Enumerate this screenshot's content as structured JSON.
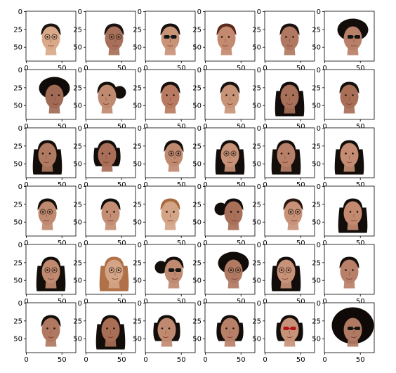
{
  "figure": {
    "type": "image-grid",
    "rows": 6,
    "cols": 6,
    "x_ticks": [
      "0",
      "50"
    ],
    "y_ticks": [
      "0",
      "25",
      "50"
    ],
    "grid_on": false,
    "axes_frame_color": "#000000",
    "background_color": "#ffffff"
  },
  "panels": [
    {
      "row": 0,
      "col": 0,
      "subject": "smiling man with glasses, short black hair, frontal",
      "hair": "short",
      "hair_color": "#1b1410",
      "skin": "#d9a98a",
      "glasses": "clear",
      "pose": "front"
    },
    {
      "row": 0,
      "col": 1,
      "subject": "man with glasses, three-quarter view",
      "hair": "short",
      "hair_color": "#1a1210",
      "skin": "#a8705a",
      "glasses": "clear",
      "pose": "right"
    },
    {
      "row": 0,
      "col": 2,
      "subject": "man with sunglasses, frontal",
      "hair": "short",
      "hair_color": "#150f0c",
      "skin": "#c99378",
      "glasses": "dark",
      "pose": "front"
    },
    {
      "row": 0,
      "col": 3,
      "subject": "woman with reddish-brown hair, turned left",
      "hair": "medium",
      "hair_color": "#5a2a1c",
      "skin": "#c48a70",
      "glasses": "none",
      "pose": "left"
    },
    {
      "row": 0,
      "col": 4,
      "subject": "man with short hair, frontal",
      "hair": "short",
      "hair_color": "#18110d",
      "skin": "#b07860",
      "glasses": "none",
      "pose": "front"
    },
    {
      "row": 0,
      "col": 5,
      "subject": "man with curly hair and sunglasses, profile",
      "hair": "curly",
      "hair_color": "#120d0a",
      "skin": "#b88068",
      "glasses": "dark",
      "pose": "right"
    },
    {
      "row": 1,
      "col": 0,
      "subject": "head with curly hair, turned away",
      "hair": "curly",
      "hair_color": "#100b09",
      "skin": "#a06a54",
      "glasses": "none",
      "pose": "right"
    },
    {
      "row": 1,
      "col": 1,
      "subject": "woman with hair in bun, turned left",
      "hair": "bun",
      "hair_color": "#140e0b",
      "skin": "#c08a70",
      "glasses": "none",
      "pose": "left"
    },
    {
      "row": 1,
      "col": 2,
      "subject": "smiling woman, frontal",
      "hair": "medium",
      "hair_color": "#160f0c",
      "skin": "#b87a60",
      "glasses": "none",
      "pose": "front"
    },
    {
      "row": 1,
      "col": 3,
      "subject": "small face woman, frontal",
      "hair": "short",
      "hair_color": "#1a120e",
      "skin": "#c89478",
      "glasses": "none",
      "pose": "front"
    },
    {
      "row": 1,
      "col": 4,
      "subject": "woman with dark hair, frontal",
      "hair": "long",
      "hair_color": "#120c0a",
      "skin": "#a87058",
      "glasses": "none",
      "pose": "front"
    },
    {
      "row": 1,
      "col": 5,
      "subject": "man with short hair, frontal",
      "hair": "short",
      "hair_color": "#15100c",
      "skin": "#a86e56",
      "glasses": "none",
      "pose": "front"
    },
    {
      "row": 2,
      "col": 0,
      "subject": "woman in profile facing left",
      "hair": "long",
      "hair_color": "#130d0a",
      "skin": "#b07a62",
      "glasses": "none",
      "pose": "left"
    },
    {
      "row": 2,
      "col": 1,
      "subject": "woman with bob hair, turned left",
      "hair": "bob",
      "hair_color": "#120c0a",
      "skin": "#a86e58",
      "glasses": "none",
      "pose": "left"
    },
    {
      "row": 2,
      "col": 2,
      "subject": "man with glasses, three-quarter",
      "hair": "short",
      "hair_color": "#140e0b",
      "skin": "#c08a70",
      "glasses": "clear",
      "pose": "right"
    },
    {
      "row": 2,
      "col": 3,
      "subject": "woman with round glasses, frontal",
      "hair": "long",
      "hair_color": "#120c0a",
      "skin": "#c89278",
      "glasses": "clear",
      "pose": "front"
    },
    {
      "row": 2,
      "col": 4,
      "subject": "woman in profile facing left",
      "hair": "long",
      "hair_color": "#140e0b",
      "skin": "#b88068",
      "glasses": "none",
      "pose": "left"
    },
    {
      "row": 2,
      "col": 5,
      "subject": "woman with long hair, frontal",
      "hair": "long",
      "hair_color": "#130d0a",
      "skin": "#c48c72",
      "glasses": "none",
      "pose": "front"
    },
    {
      "row": 3,
      "col": 0,
      "subject": "man with glasses, profile facing left",
      "hair": "medium",
      "hair_color": "#140e0b",
      "skin": "#c08a70",
      "glasses": "clear",
      "pose": "left"
    },
    {
      "row": 3,
      "col": 1,
      "subject": "young man, frontal",
      "hair": "medium",
      "hair_color": "#130d0a",
      "skin": "#c48e74",
      "glasses": "none",
      "pose": "front"
    },
    {
      "row": 3,
      "col": 2,
      "subject": "woman with light brown hair, frontal",
      "hair": "medium",
      "hair_color": "#a8683e",
      "skin": "#d4a486",
      "glasses": "none",
      "pose": "front"
    },
    {
      "row": 3,
      "col": 3,
      "subject": "woman with ponytail, profile facing right",
      "hair": "bun",
      "hair_color": "#120c0a",
      "skin": "#a87058",
      "glasses": "none",
      "pose": "right"
    },
    {
      "row": 3,
      "col": 4,
      "subject": "man with glasses, three-quarter",
      "hair": "medium",
      "hair_color": "#2a1610",
      "skin": "#c89278",
      "glasses": "clear",
      "pose": "right"
    },
    {
      "row": 3,
      "col": 5,
      "subject": "woman with long hair, turned right",
      "hair": "long",
      "hair_color": "#120c0a",
      "skin": "#c48a70",
      "glasses": "none",
      "pose": "right"
    },
    {
      "row": 4,
      "col": 0,
      "subject": "woman with glasses and long hair, frontal",
      "hair": "long",
      "hair_color": "#130d0a",
      "skin": "#c08a70",
      "glasses": "clear",
      "pose": "front"
    },
    {
      "row": 4,
      "col": 1,
      "subject": "woman with light brown hair and glasses",
      "hair": "long",
      "hair_color": "#b07048",
      "skin": "#d4a486",
      "glasses": "clear",
      "pose": "right"
    },
    {
      "row": 4,
      "col": 2,
      "subject": "woman with sunglasses, profile right",
      "hair": "bun",
      "hair_color": "#140e0b",
      "skin": "#c08a70",
      "glasses": "dark",
      "pose": "right"
    },
    {
      "row": 4,
      "col": 3,
      "subject": "man with curly hair and glasses",
      "hair": "curly",
      "hair_color": "#110c09",
      "skin": "#b07a62",
      "glasses": "clear",
      "pose": "right"
    },
    {
      "row": 4,
      "col": 4,
      "subject": "woman with long hair and glasses, left",
      "hair": "long",
      "hair_color": "#120c0a",
      "skin": "#c89278",
      "glasses": "clear",
      "pose": "left"
    },
    {
      "row": 4,
      "col": 5,
      "subject": "man with short hair, frontal",
      "hair": "short",
      "hair_color": "#140e0b",
      "skin": "#b88068",
      "glasses": "none",
      "pose": "front"
    },
    {
      "row": 5,
      "col": 0,
      "subject": "man with short hair, frontal",
      "hair": "short",
      "hair_color": "#140e0b",
      "skin": "#b07860",
      "glasses": "none",
      "pose": "front"
    },
    {
      "row": 5,
      "col": 1,
      "subject": "woman with long dark hair, frontal",
      "hair": "long",
      "hair_color": "#130d0a",
      "skin": "#a86e56",
      "glasses": "none",
      "pose": "front"
    },
    {
      "row": 5,
      "col": 2,
      "subject": "woman with bob hair, turned left",
      "hair": "bob",
      "hair_color": "#140e0b",
      "skin": "#c08a70",
      "glasses": "none",
      "pose": "left"
    },
    {
      "row": 5,
      "col": 3,
      "subject": "woman with bob hair, frontal",
      "hair": "bob",
      "hair_color": "#130d0a",
      "skin": "#b88068",
      "glasses": "none",
      "pose": "front"
    },
    {
      "row": 5,
      "col": 4,
      "subject": "woman with red sunglasses, frontal",
      "hair": "bob",
      "hair_color": "#120c0a",
      "skin": "#c89278",
      "glasses": "red",
      "pose": "front"
    },
    {
      "row": 5,
      "col": 5,
      "subject": "person with large curly hair and sunglasses",
      "hair": "afro",
      "hair_color": "#0f0a08",
      "skin": "#b07a62",
      "glasses": "dark",
      "pose": "right"
    }
  ]
}
